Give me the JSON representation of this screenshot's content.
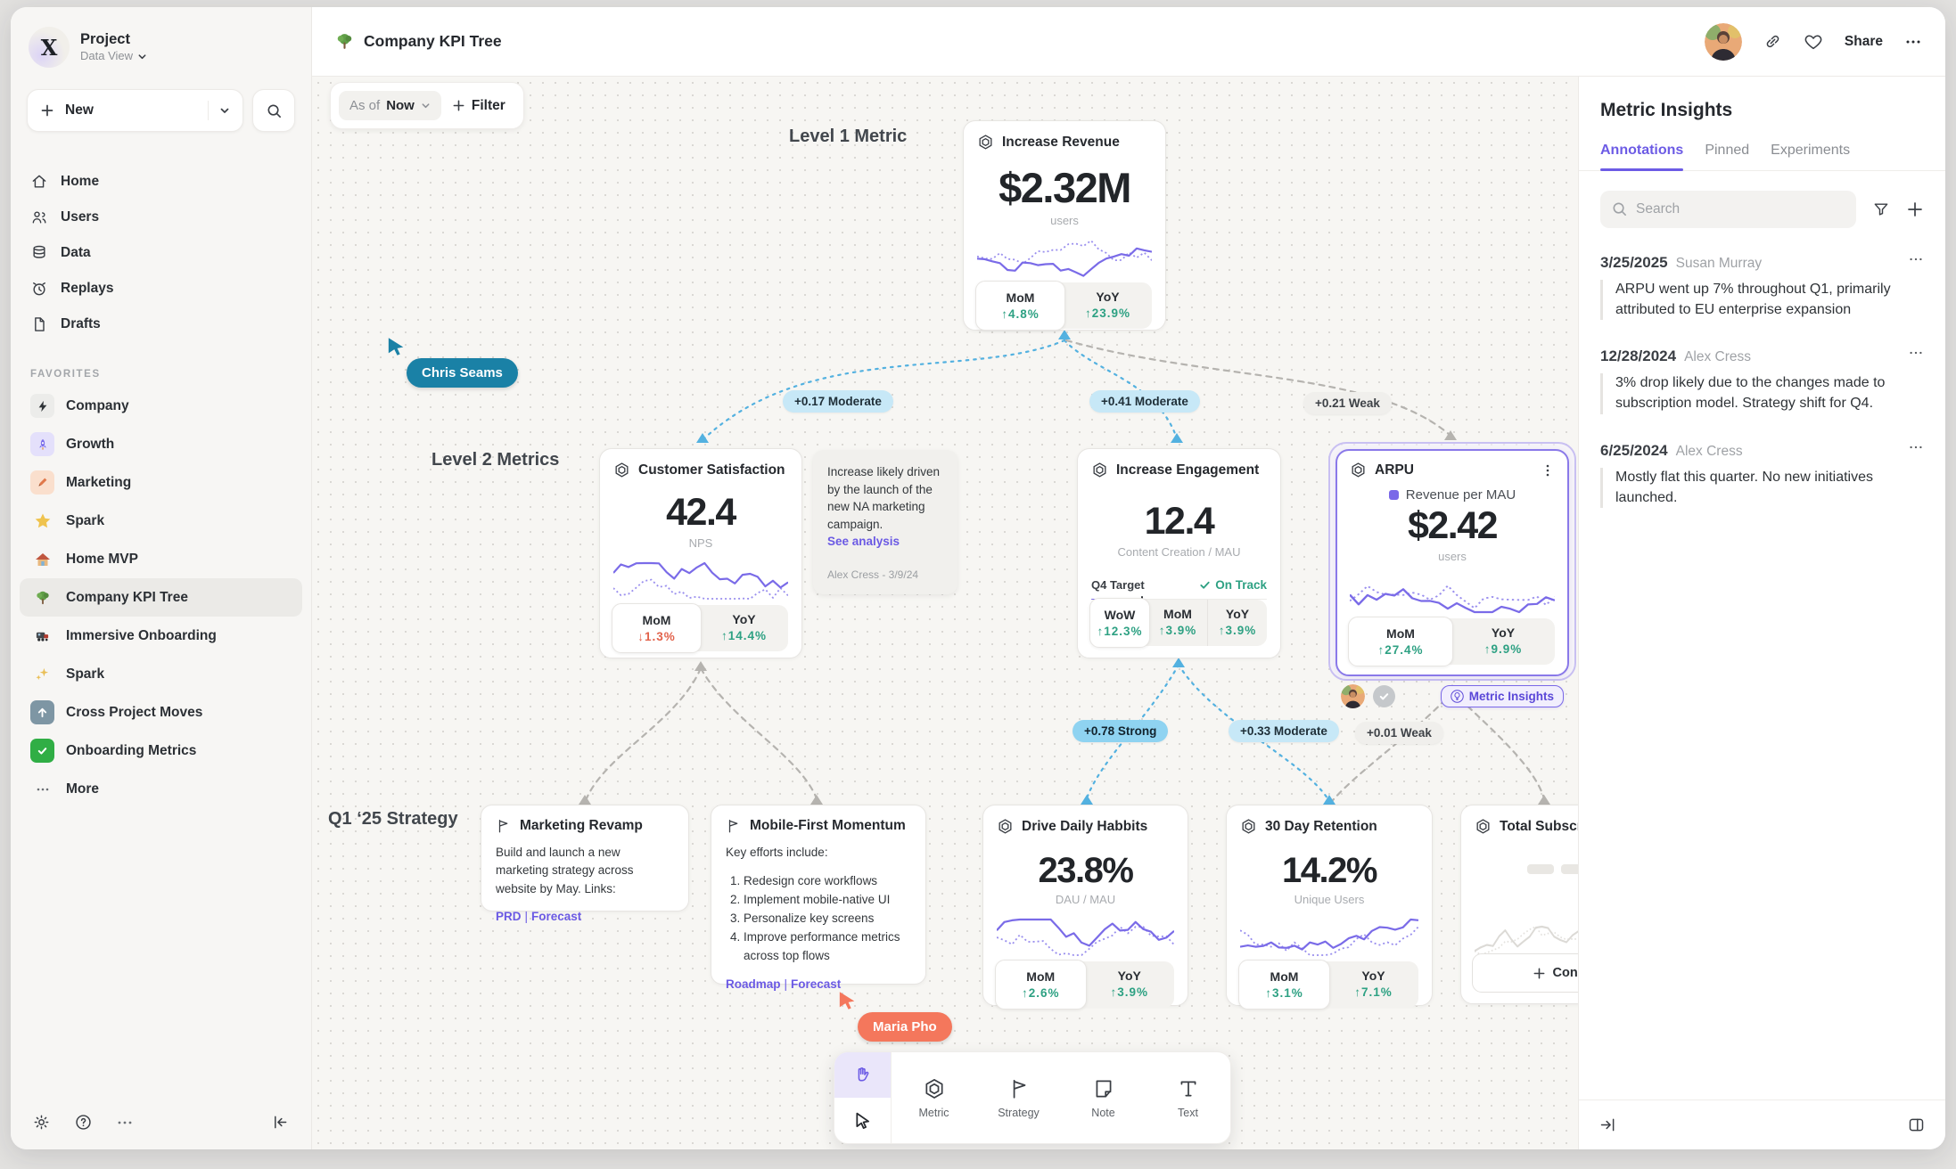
{
  "header": {
    "title": "Company KPI Tree",
    "share_label": "Share"
  },
  "sidebar": {
    "project_name": "Project",
    "project_view": "Data View",
    "new_label": "New",
    "nav": [
      {
        "label": "Home"
      },
      {
        "label": "Users"
      },
      {
        "label": "Data"
      },
      {
        "label": "Replays"
      },
      {
        "label": "Drafts"
      }
    ],
    "favorites_title": "FAVORITES",
    "favorites": [
      {
        "label": "Company"
      },
      {
        "label": "Growth"
      },
      {
        "label": "Marketing"
      },
      {
        "label": "Spark"
      },
      {
        "label": "Home MVP"
      },
      {
        "label": "Company KPI Tree"
      },
      {
        "label": "Immersive Onboarding"
      },
      {
        "label": "Spark"
      },
      {
        "label": "Cross Project Moves"
      },
      {
        "label": "Onboarding Metrics"
      }
    ],
    "more_label": "More"
  },
  "canvas": {
    "asof_label": "As of",
    "asof_value": "Now",
    "filter_label": "Filter",
    "level1_label": "Level 1 Metric",
    "level2_label": "Level 2 Metrics",
    "strategy_label": "Q1 ‘25 Strategy",
    "cursors": {
      "chris": "Chris Seams",
      "maria": "Maria Pho"
    },
    "cursor_colors": {
      "chris": "#1A81A6",
      "maria": "#F4775C"
    },
    "edge_labels": {
      "e1": "+0.17 Moderate",
      "e2": "+0.41 Moderate",
      "e3": "+0.21 Weak",
      "e4": "+0.78 Strong",
      "e5": "+0.33 Moderate",
      "e6": "+0.01 Weak"
    },
    "cards": {
      "revenue": {
        "title": "Increase Revenue",
        "value": "$2.32M",
        "unit": "users",
        "stats": [
          {
            "label": "MoM",
            "value": "↑4.8%"
          },
          {
            "label": "YoY",
            "value": "↑23.9%"
          }
        ]
      },
      "satisfaction": {
        "title": "Customer Satisfaction",
        "value": "42.4",
        "unit": "NPS",
        "stats": [
          {
            "label": "MoM",
            "value": "↓1.3%"
          },
          {
            "label": "YoY",
            "value": "↑14.4%"
          }
        ]
      },
      "engagement": {
        "title": "Increase Engagement",
        "value": "12.4",
        "unit": "Content Creation / MAU",
        "target_label": "Q4 Target",
        "target_status": "On Track",
        "progress_pct": 29,
        "stats": [
          {
            "label": "WoW",
            "value": "↑12.3%"
          },
          {
            "label": "MoM",
            "value": "↑3.9%"
          },
          {
            "label": "YoY",
            "value": "↑3.9%"
          }
        ]
      },
      "arpu": {
        "title": "ARPU",
        "legend": "Revenue per MAU",
        "value": "$2.42",
        "unit": "users",
        "stats": [
          {
            "label": "MoM",
            "value": "↑27.4%"
          },
          {
            "label": "YoY",
            "value": "↑9.9%"
          }
        ],
        "insights_button": "Metric Insights"
      },
      "drive": {
        "title": "Drive Daily Habbits",
        "value": "23.8%",
        "unit": "DAU / MAU",
        "stats": [
          {
            "label": "MoM",
            "value": "↑2.6%"
          },
          {
            "label": "YoY",
            "value": "↑3.9%"
          }
        ]
      },
      "retention": {
        "title": "30 Day Retention",
        "value": "14.2%",
        "unit": "Unique Users",
        "stats": [
          {
            "label": "MoM",
            "value": "↑3.1%"
          },
          {
            "label": "YoY",
            "value": "↑7.1%"
          }
        ]
      },
      "total": {
        "title": "Total Subscriptions",
        "connect_label": "Connect"
      }
    },
    "note": {
      "text": "Increase likely driven by the launch of the new NA marketing campaign.",
      "link": "See analysis",
      "attribution": "Alex Cress - 3/9/24"
    },
    "strategies": {
      "marketing": {
        "title": "Marketing Revamp",
        "body": "Build and launch a new marketing strategy across website by May. Links:",
        "links": [
          "PRD",
          "Forecast"
        ],
        "links_sep": "|"
      },
      "mobile": {
        "title": "Mobile-First Momentum",
        "intro": "Key efforts include:",
        "items": [
          "Redesign core workflows",
          "Implement mobile-native UI",
          "Personalize key screens",
          "Improve performance metrics across top flows"
        ],
        "links": [
          "Roadmap",
          "Forecast"
        ],
        "links_sep": "|"
      }
    }
  },
  "toolbar": {
    "tools": [
      {
        "label": "Metric"
      },
      {
        "label": "Strategy"
      },
      {
        "label": "Note"
      },
      {
        "label": "Text"
      }
    ]
  },
  "panel": {
    "title": "Metric Insights",
    "tabs": [
      {
        "label": "Annotations"
      },
      {
        "label": "Pinned"
      },
      {
        "label": "Experiments"
      }
    ],
    "search_placeholder": "Search",
    "annotations": [
      {
        "date": "3/25/2025",
        "author": "Susan Murray",
        "text": "ARPU went up 7% throughout Q1, primarily attributed to EU enterprise expansion"
      },
      {
        "date": "12/28/2024",
        "author": "Alex Cress",
        "text": "3% drop likely due to the changes made to subscription model. Strategy shift for Q4."
      },
      {
        "date": "6/25/2024",
        "author": "Alex Cress",
        "text": "Mostly flat this quarter. No new initiatives launched."
      }
    ]
  },
  "colors": {
    "accent": "#6C5BE5",
    "up": "#2EA183",
    "down": "#E2624B",
    "spark": "#7A6BE8"
  }
}
